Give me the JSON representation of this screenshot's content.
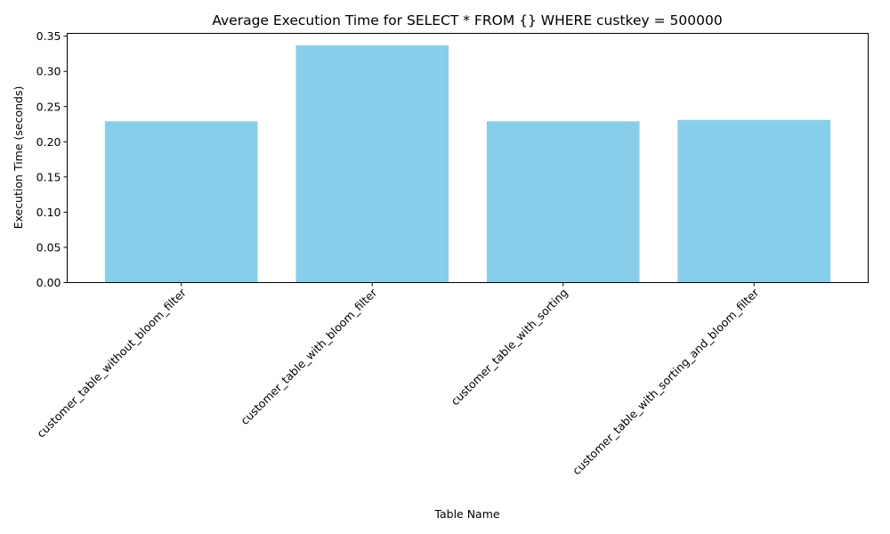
{
  "chart_data": {
    "type": "bar",
    "title": "Average Execution Time for SELECT * FROM {} WHERE custkey = 500000",
    "xlabel": "Table Name",
    "ylabel": "Execution Time (seconds)",
    "categories": [
      "customer_table_without_bloom_filter",
      "customer_table_with_bloom_filter",
      "customer_table_with_sorting",
      "customer_table_with_sorting_and_bloom_filter"
    ],
    "values": [
      0.229,
      0.337,
      0.229,
      0.231
    ],
    "ylim": [
      0,
      0.354
    ],
    "yticks": [
      "0.00",
      "0.05",
      "0.10",
      "0.15",
      "0.20",
      "0.25",
      "0.30",
      "0.35"
    ],
    "bar_color": "#87CEEB",
    "grid": false
  }
}
